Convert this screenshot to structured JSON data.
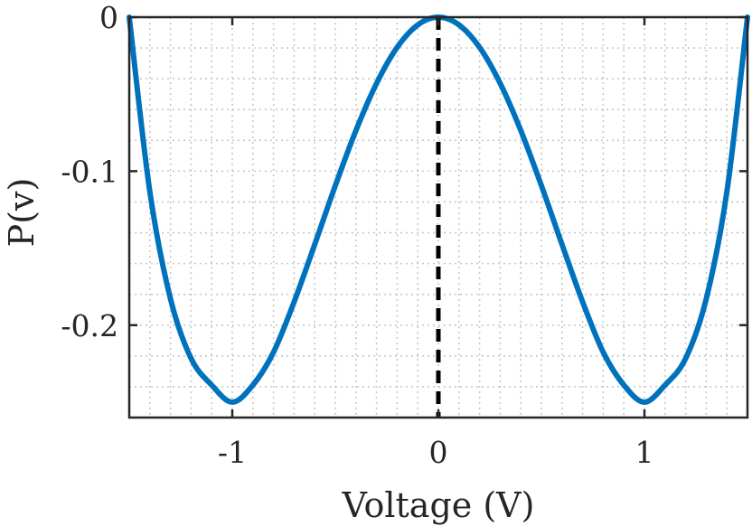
{
  "chart_data": {
    "type": "line",
    "title": "",
    "xlabel": "Voltage (V)",
    "ylabel": "P(v)",
    "xlim": [
      -1.5,
      1.5
    ],
    "ylim": [
      -0.26,
      0.0
    ],
    "x_ticks": [
      -1,
      0,
      1
    ],
    "x_tick_labels": [
      "-1",
      "0",
      "1"
    ],
    "y_ticks": [
      0,
      -0.1,
      -0.2
    ],
    "y_tick_labels": [
      "0",
      "-0.1",
      "-0.2"
    ],
    "grid": "on (major and minor, dotted)",
    "legend": "none",
    "series": [
      {
        "color": "#0072BD",
        "line_style": "solid",
        "x": [
          -1.5,
          -1.4,
          -1.3,
          -1.2,
          -1.1,
          -1.0,
          -0.9,
          -0.8,
          -0.7,
          -0.6,
          -0.5,
          -0.4,
          -0.3,
          -0.2,
          -0.1,
          0.0,
          0.1,
          0.2,
          0.3,
          0.4,
          0.5,
          0.6,
          0.7,
          0.8,
          0.9,
          1.0,
          1.1,
          1.2,
          1.3,
          1.4,
          1.5
        ],
        "y": [
          0.0,
          -0.1134,
          -0.1829,
          -0.2216,
          -0.2389,
          -0.25,
          -0.2389,
          -0.2176,
          -0.1849,
          -0.1476,
          -0.1094,
          -0.0736,
          -0.043,
          -0.0196,
          -0.005,
          0.0,
          -0.005,
          -0.0196,
          -0.043,
          -0.0736,
          -0.1094,
          -0.1476,
          -0.1849,
          -0.2176,
          -0.2389,
          -0.25,
          -0.2389,
          -0.2216,
          -0.1829,
          -0.1134,
          0.0
        ]
      }
    ],
    "reference_lines": [
      {
        "orientation": "vertical",
        "x": 0,
        "y_range": [
          -0.26,
          0.0
        ],
        "color": "#000000",
        "line_style": "dashed"
      }
    ]
  }
}
